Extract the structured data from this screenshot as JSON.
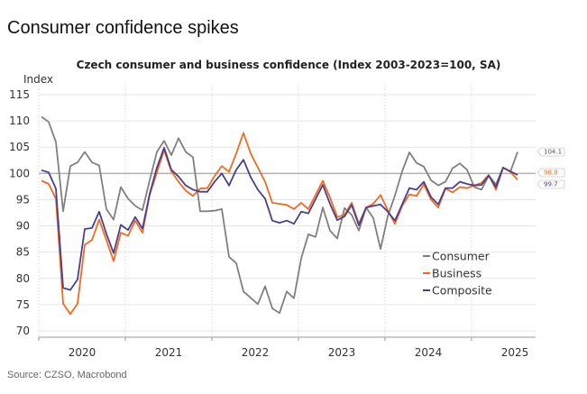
{
  "headline": "Consumer confidence spikes",
  "source": "Source: CZSO, Macrobond",
  "chart_data": {
    "type": "line",
    "title": "Czech consumer and business confidence (Index 2003-2023=100, SA)",
    "ylabel": "Index",
    "xlabel": "",
    "ylim": [
      70,
      115
    ],
    "yticks": [
      70,
      75,
      80,
      85,
      90,
      95,
      100,
      105,
      110,
      115
    ],
    "xticks": [
      "2020",
      "2021",
      "2022",
      "2023",
      "2024",
      "2025"
    ],
    "x_start": "2020-01",
    "x_end": "2025-07",
    "frequency": "monthly",
    "reference_line": 100,
    "grid": true,
    "legend_placement": "bottom-right",
    "series": [
      {
        "name": "Consumer",
        "color": "#808080",
        "end_label": "104.1",
        "values": [
          110.8,
          109.8,
          106.0,
          92.8,
          101.4,
          102.1,
          104.1,
          102.1,
          101.5,
          93.2,
          91.2,
          97.4,
          95.2,
          93.8,
          93.0,
          98.7,
          104.1,
          106.2,
          103.5,
          106.7,
          104.1,
          103.1,
          92.8,
          92.8,
          92.9,
          93.2,
          84.1,
          82.9,
          77.5,
          76.3,
          75.1,
          78.5,
          74.3,
          73.4,
          77.5,
          76.2,
          83.8,
          88.4,
          87.9,
          93.5,
          89.1,
          87.6,
          93.4,
          92.1,
          89.1,
          93.5,
          91.5,
          85.6,
          91.8,
          95.8,
          100.4,
          104.0,
          102.0,
          101.3,
          98.7,
          97.7,
          98.4,
          101.0,
          101.9,
          100.7,
          97.4,
          96.9,
          99.6,
          97.9,
          101.1,
          100.3,
          104.1
        ]
      },
      {
        "name": "Business",
        "color": "#f26a21",
        "end_label": "98.8",
        "values": [
          98.6,
          98.0,
          95.2,
          75.2,
          73.2,
          75.2,
          86.4,
          87.3,
          91.2,
          87.3,
          83.3,
          88.7,
          88.1,
          91.0,
          88.7,
          95.9,
          100.2,
          104.4,
          100.4,
          98.4,
          96.7,
          95.7,
          97.1,
          97.2,
          99.5,
          101.4,
          100.3,
          103.8,
          107.7,
          103.8,
          101.1,
          98.4,
          94.4,
          94.2,
          94.0,
          93.2,
          94.4,
          93.2,
          95.9,
          98.6,
          95.4,
          91.7,
          92.1,
          94.4,
          90.4,
          93.5,
          94.2,
          95.9,
          93.0,
          90.4,
          93.8,
          96.0,
          95.7,
          97.9,
          95.0,
          93.5,
          97.1,
          96.4,
          97.4,
          97.2,
          97.7,
          98.2,
          99.7,
          96.9,
          101.1,
          100.3,
          98.8
        ]
      },
      {
        "name": "Composite",
        "color": "#4b3f8c",
        "end_label": "99.7",
        "values": [
          100.6,
          100.2,
          97.1,
          78.2,
          77.8,
          79.8,
          89.4,
          89.6,
          92.7,
          88.5,
          84.8,
          90.2,
          89.2,
          91.7,
          89.5,
          96.1,
          101.1,
          104.9,
          100.7,
          99.4,
          97.7,
          96.9,
          96.5,
          96.5,
          98.4,
          100.0,
          97.7,
          100.7,
          102.6,
          99.3,
          96.9,
          95.2,
          91.0,
          90.6,
          91.0,
          90.4,
          92.7,
          92.4,
          95.1,
          97.8,
          94.2,
          91.1,
          91.8,
          94.0,
          90.1,
          93.5,
          93.8,
          94.1,
          92.7,
          91.0,
          94.1,
          97.2,
          96.9,
          98.4,
          95.5,
          94.1,
          97.2,
          97.2,
          98.4,
          98.0,
          97.7,
          97.8,
          99.6,
          97.4,
          101.1,
          100.4,
          99.7
        ]
      }
    ]
  }
}
